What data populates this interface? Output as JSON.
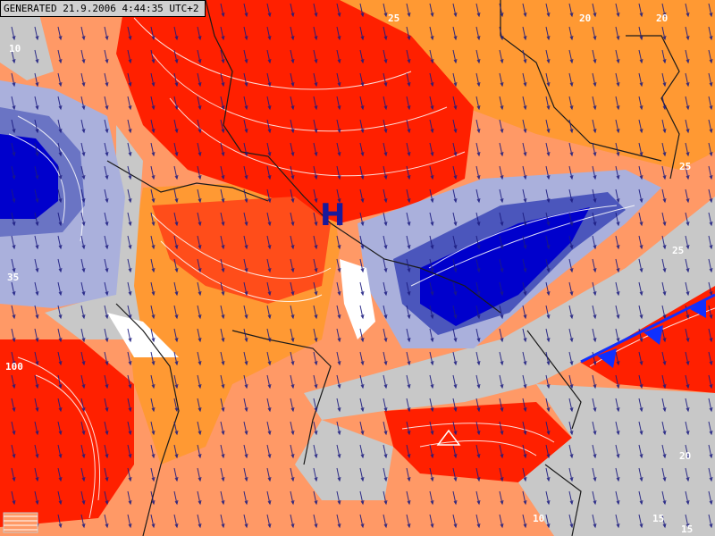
{
  "header": {
    "generated_stamp": "GENERATED 21.9.2006 4:44:35 UTC+2"
  },
  "pressure_center": {
    "label": "H"
  },
  "contour_labels": {
    "top_left": "10",
    "top_mid_a": "25",
    "top_mid_b": "20",
    "top_right": "20",
    "right_a": "25",
    "right_b": "25",
    "right_c": "20",
    "left_a": "35",
    "left_b": "100",
    "bottom_a": "15",
    "bottom_b": "10",
    "bottom_c": "15"
  },
  "legend": {
    "warm_color": "#ff2000",
    "mid_warm_color": "#ff6633",
    "light_warm_color": "#ff9966",
    "orange_color": "#ff9933",
    "neutral_color": "#c8c8c8",
    "cool_color": "#0000cc",
    "front_color": "#1030ff"
  }
}
